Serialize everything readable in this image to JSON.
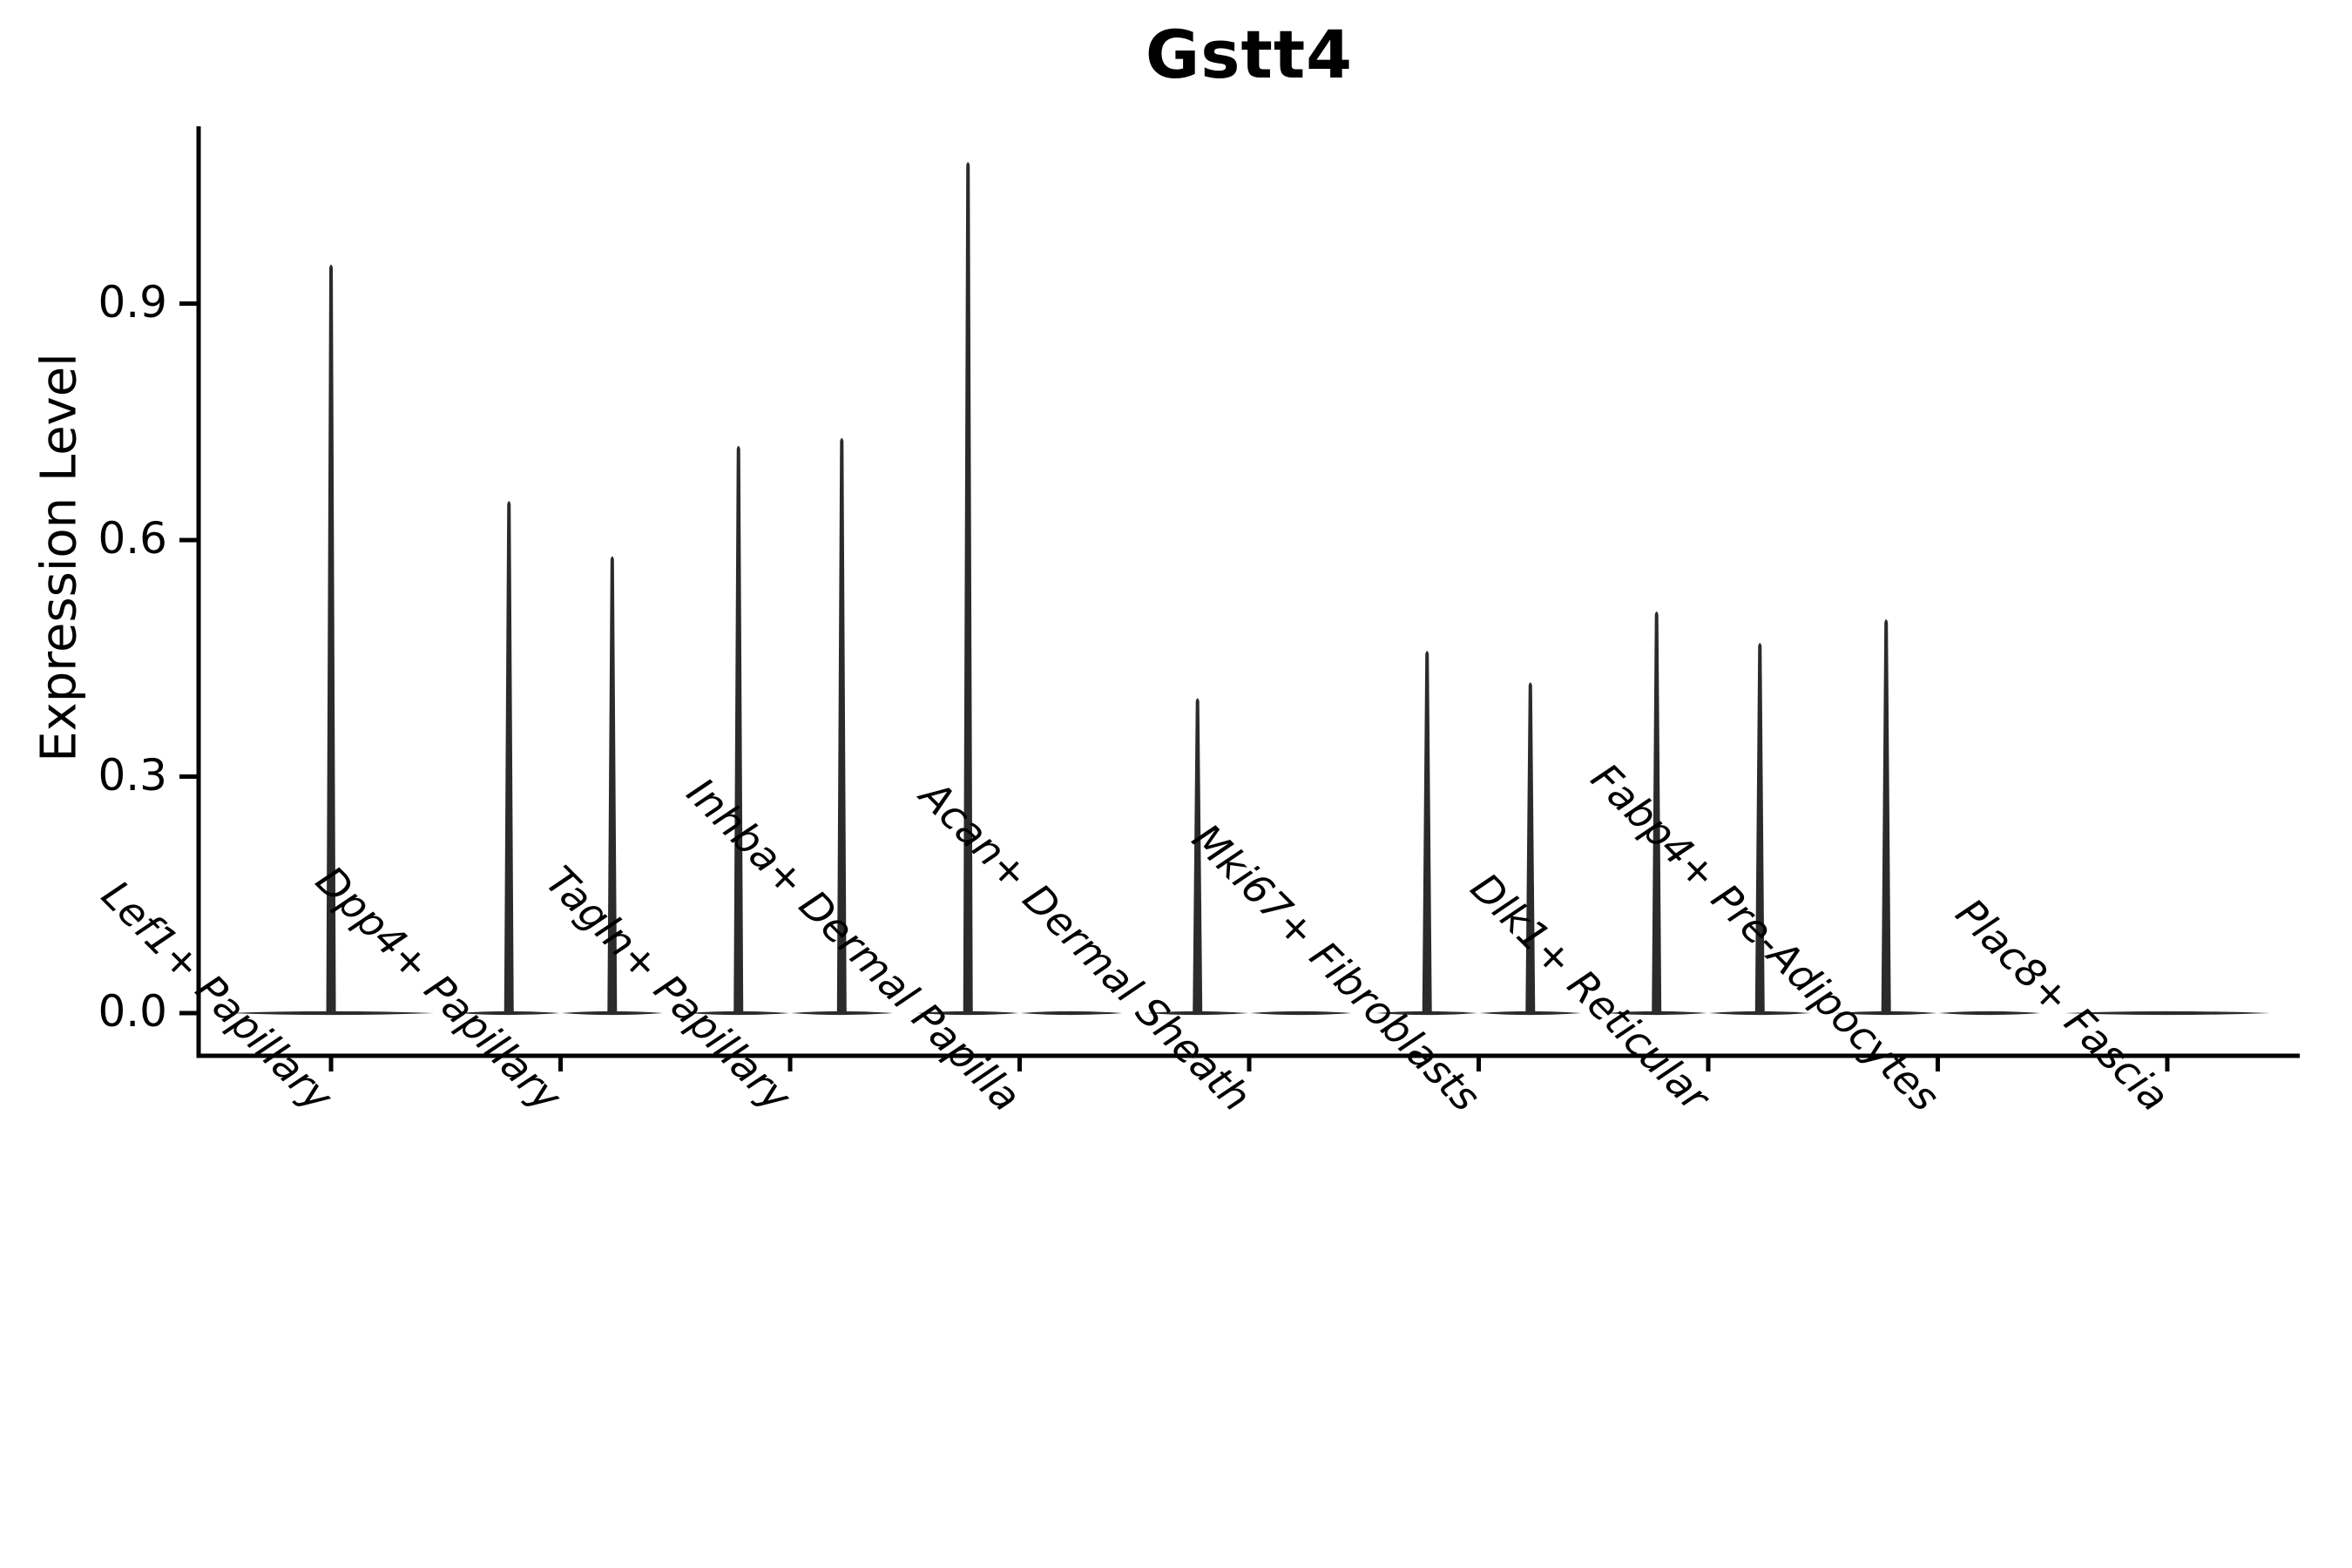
{
  "title": "Gstt4",
  "y_axis": {
    "label": "Expression Level",
    "tick_labels": [
      "0.0",
      "0.3",
      "0.6",
      "0.9"
    ]
  },
  "chart_data": {
    "type": "violin",
    "title": "Gstt4",
    "xlabel": "",
    "ylabel": "Expression Level",
    "yticks": [
      0.0,
      0.3,
      0.6,
      0.9
    ],
    "ylim": [
      -0.05,
      1.13
    ],
    "grid": false,
    "legend": false,
    "categories": [
      "Lef1+ Papillary",
      "Dpp4+ Papillary",
      "Tagln+ Papillary",
      "Inhba+ Dermal Papilla",
      "Acan+ Dermal Sheath",
      "Mki67+ Fibroblasts",
      "Dlk1+ Reticular",
      "Fabp4+ Pre-Adipocytes",
      "Plac8+ Fascia"
    ],
    "series": [
      {
        "category": "Lef1+ Papillary",
        "violins": [
          {
            "offset": 0,
            "halfwidth": 0.455,
            "max_expression": 0.95
          }
        ]
      },
      {
        "category": "Dpp4+ Papillary",
        "violins": [
          {
            "offset": -0.225,
            "halfwidth": 0.2275,
            "max_expression": 0.65
          },
          {
            "offset": 0.225,
            "halfwidth": 0.2275,
            "max_expression": 0.58
          }
        ]
      },
      {
        "category": "Tagln+ Papillary",
        "violins": [
          {
            "offset": -0.225,
            "halfwidth": 0.2275,
            "max_expression": 0.72
          },
          {
            "offset": 0.225,
            "halfwidth": 0.2275,
            "max_expression": 0.73
          }
        ]
      },
      {
        "category": "Inhba+ Dermal Papilla",
        "violins": [
          {
            "offset": -0.225,
            "halfwidth": 0.2275,
            "max_expression": 1.08
          },
          {
            "offset": 0.225,
            "halfwidth": 0.2275,
            "max_expression": 0
          }
        ]
      },
      {
        "category": "Acan+ Dermal Sheath",
        "violins": [
          {
            "offset": -0.225,
            "halfwidth": 0.2275,
            "max_expression": 0.4
          },
          {
            "offset": 0.225,
            "halfwidth": 0.2275,
            "max_expression": 0
          }
        ]
      },
      {
        "category": "Mki67+ Fibroblasts",
        "violins": [
          {
            "offset": -0.225,
            "halfwidth": 0.2275,
            "max_expression": 0.46
          },
          {
            "offset": 0.225,
            "halfwidth": 0.2275,
            "max_expression": 0.42
          }
        ]
      },
      {
        "category": "Dlk1+ Reticular",
        "violins": [
          {
            "offset": -0.225,
            "halfwidth": 0.2275,
            "max_expression": 0.51
          },
          {
            "offset": 0.225,
            "halfwidth": 0.2275,
            "max_expression": 0.47
          }
        ]
      },
      {
        "category": "Fabp4+ Pre-Adipocytes",
        "violins": [
          {
            "offset": -0.225,
            "halfwidth": 0.2275,
            "max_expression": 0.5
          },
          {
            "offset": 0.225,
            "halfwidth": 0.2275,
            "max_expression": 0
          }
        ]
      },
      {
        "category": "Plac8+ Fascia",
        "violins": [
          {
            "offset": 0,
            "halfwidth": 0.455,
            "max_expression": 0
          }
        ]
      }
    ],
    "colors": {
      "violin": "#2b2b2b",
      "axis": "#000000",
      "text": "#000000"
    }
  }
}
